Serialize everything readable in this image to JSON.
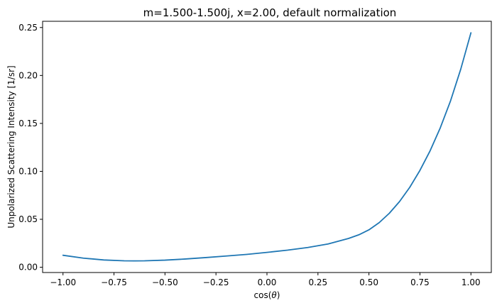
{
  "chart_data": {
    "type": "line",
    "title": "m=1.500-1.500j, x=2.00, default normalization",
    "xlabel_prefix": "cos(",
    "xlabel_symbol": "θ",
    "xlabel_suffix": ")",
    "ylabel": "Unpolarized Scattering Intensity [1/sr]",
    "xlim": [
      -1.1,
      1.1
    ],
    "ylim": [
      -0.0055,
      0.2565
    ],
    "grid": false,
    "legend": "none",
    "xticks": [
      -1.0,
      -0.75,
      -0.5,
      -0.25,
      0.0,
      0.25,
      0.5,
      0.75,
      1.0
    ],
    "xtick_labels": [
      "−1.00",
      "−0.75",
      "−0.50",
      "−0.25",
      "0.00",
      "0.25",
      "0.50",
      "0.75",
      "1.00"
    ],
    "yticks": [
      0.0,
      0.05,
      0.1,
      0.15,
      0.2,
      0.25
    ],
    "ytick_labels": [
      "0.00",
      "0.05",
      "0.10",
      "0.15",
      "0.20",
      "0.25"
    ],
    "series": [
      {
        "color": "#1f77b4",
        "x": [
          -1.0,
          -0.9,
          -0.8,
          -0.7,
          -0.65,
          -0.6,
          -0.5,
          -0.4,
          -0.3,
          -0.2,
          -0.1,
          0.0,
          0.1,
          0.2,
          0.3,
          0.4,
          0.45,
          0.5,
          0.55,
          0.6,
          0.65,
          0.7,
          0.75,
          0.8,
          0.85,
          0.9,
          0.95,
          1.0
        ],
        "y": [
          0.0125,
          0.0095,
          0.0076,
          0.0067,
          0.0066,
          0.0067,
          0.0074,
          0.0086,
          0.0101,
          0.0117,
          0.0134,
          0.0155,
          0.0178,
          0.0206,
          0.0243,
          0.03,
          0.0338,
          0.039,
          0.0465,
          0.0563,
          0.0685,
          0.0833,
          0.101,
          0.1215,
          0.1455,
          0.1735,
          0.2065,
          0.2445
        ]
      }
    ]
  }
}
